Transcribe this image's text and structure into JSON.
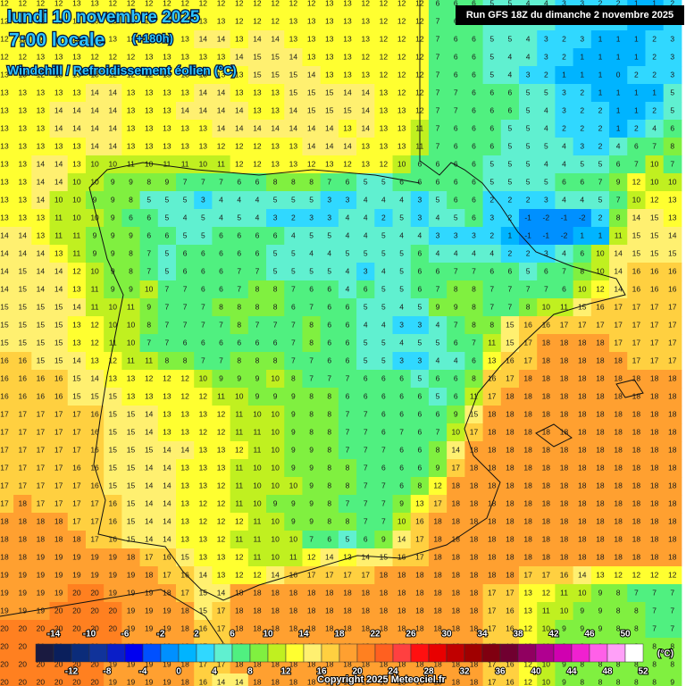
{
  "header": {
    "title": "lundi 10 novembre 2025",
    "time": "7:00 locale",
    "lead": "(+180h)",
    "variable": "Windchill / Refroidissement éolien (°C)",
    "run": "Run GFS 18Z du dimanche 2 novembre 2025"
  },
  "grid": {
    "rows": [
      [
        12,
        12,
        12,
        12,
        13,
        13,
        12,
        12,
        12,
        12,
        12,
        12,
        12,
        12,
        12,
        12,
        12,
        12,
        13,
        13,
        12,
        12,
        12,
        12,
        6,
        6,
        6,
        5,
        5,
        4,
        4,
        3,
        3,
        2,
        2,
        1,
        1,
        2
      ],
      [
        12,
        12,
        12,
        12,
        13,
        13,
        12,
        13,
        13,
        13,
        13,
        13,
        13,
        12,
        12,
        12,
        13,
        13,
        13,
        13,
        13,
        12,
        12,
        12,
        7,
        6,
        6,
        5,
        5,
        4,
        4,
        3,
        3,
        2,
        2,
        1,
        1,
        2
      ],
      [
        12,
        12,
        12,
        12,
        13,
        13,
        13,
        12,
        12,
        13,
        13,
        14,
        14,
        13,
        14,
        14,
        13,
        13,
        13,
        13,
        13,
        12,
        12,
        12,
        7,
        6,
        6,
        5,
        5,
        4,
        3,
        2,
        3,
        1,
        1,
        1,
        2,
        3
      ],
      [
        12,
        12,
        13,
        13,
        13,
        12,
        12,
        12,
        13,
        13,
        13,
        13,
        13,
        14,
        15,
        15,
        14,
        13,
        13,
        13,
        12,
        12,
        12,
        12,
        7,
        6,
        6,
        5,
        4,
        4,
        3,
        2,
        1,
        1,
        1,
        1,
        2,
        3
      ],
      [
        13,
        13,
        12,
        13,
        13,
        13,
        12,
        12,
        12,
        13,
        13,
        13,
        13,
        13,
        15,
        15,
        15,
        14,
        13,
        13,
        13,
        12,
        12,
        12,
        7,
        6,
        6,
        5,
        4,
        3,
        2,
        1,
        1,
        1,
        0,
        2,
        2,
        3
      ],
      [
        13,
        13,
        13,
        13,
        13,
        14,
        14,
        13,
        13,
        13,
        13,
        14,
        14,
        13,
        13,
        13,
        15,
        15,
        15,
        14,
        14,
        13,
        12,
        12,
        7,
        7,
        6,
        6,
        6,
        5,
        5,
        3,
        2,
        1,
        1,
        1,
        1,
        5
      ],
      [
        13,
        13,
        13,
        14,
        14,
        14,
        14,
        13,
        13,
        13,
        14,
        14,
        14,
        14,
        13,
        13,
        14,
        15,
        15,
        15,
        14,
        13,
        13,
        12,
        7,
        7,
        6,
        6,
        6,
        5,
        4,
        3,
        2,
        2,
        1,
        1,
        2,
        5
      ],
      [
        13,
        13,
        13,
        14,
        14,
        14,
        14,
        13,
        13,
        13,
        13,
        13,
        14,
        14,
        14,
        14,
        14,
        14,
        14,
        13,
        14,
        13,
        13,
        11,
        7,
        6,
        6,
        6,
        5,
        5,
        4,
        2,
        2,
        2,
        1,
        2,
        4,
        6
      ],
      [
        13,
        13,
        13,
        13,
        13,
        14,
        14,
        13,
        13,
        13,
        13,
        13,
        12,
        12,
        12,
        13,
        13,
        14,
        14,
        14,
        13,
        13,
        13,
        11,
        7,
        6,
        6,
        6,
        5,
        5,
        5,
        4,
        3,
        2,
        4,
        6,
        7,
        8
      ],
      [
        13,
        13,
        14,
        14,
        13,
        10,
        10,
        11,
        10,
        11,
        11,
        10,
        11,
        12,
        12,
        13,
        13,
        12,
        13,
        12,
        13,
        12,
        10,
        6,
        6,
        6,
        6,
        5,
        5,
        5,
        4,
        4,
        5,
        5,
        6,
        7,
        10,
        7
      ],
      [
        13,
        13,
        14,
        14,
        10,
        10,
        9,
        9,
        8,
        9,
        7,
        7,
        7,
        6,
        6,
        8,
        8,
        8,
        7,
        6,
        5,
        5,
        6,
        6,
        6,
        6,
        6,
        5,
        5,
        5,
        5,
        6,
        6,
        7,
        9,
        12,
        10,
        10
      ],
      [
        13,
        13,
        14,
        10,
        10,
        9,
        9,
        8,
        5,
        5,
        5,
        3,
        4,
        4,
        4,
        5,
        5,
        5,
        3,
        3,
        4,
        4,
        4,
        3,
        5,
        6,
        6,
        2,
        2,
        2,
        3,
        4,
        4,
        5,
        7,
        10,
        12,
        13
      ],
      [
        13,
        13,
        13,
        11,
        10,
        10,
        9,
        6,
        6,
        5,
        4,
        5,
        4,
        5,
        4,
        3,
        2,
        3,
        3,
        4,
        4,
        2,
        5,
        3,
        4,
        5,
        6,
        3,
        2,
        -1,
        -2,
        -1,
        -2,
        2,
        8,
        14,
        15,
        13
      ],
      [
        14,
        14,
        13,
        11,
        11,
        9,
        9,
        9,
        6,
        6,
        5,
        5,
        6,
        6,
        6,
        6,
        4,
        5,
        5,
        4,
        4,
        5,
        4,
        4,
        3,
        3,
        3,
        2,
        1,
        -1,
        -1,
        -2,
        1,
        1,
        11,
        15,
        15,
        14
      ],
      [
        14,
        14,
        14,
        13,
        11,
        9,
        9,
        8,
        7,
        5,
        6,
        6,
        6,
        6,
        6,
        5,
        5,
        4,
        4,
        5,
        5,
        5,
        5,
        6,
        4,
        4,
        4,
        4,
        2,
        2,
        3,
        4,
        6,
        10,
        14,
        15,
        15,
        15
      ],
      [
        14,
        15,
        14,
        14,
        12,
        10,
        9,
        8,
        7,
        5,
        6,
        6,
        6,
        7,
        7,
        5,
        5,
        5,
        5,
        4,
        3,
        4,
        5,
        6,
        6,
        7,
        7,
        6,
        6,
        5,
        6,
        7,
        8,
        10,
        14,
        16,
        16,
        16
      ],
      [
        14,
        15,
        14,
        14,
        13,
        11,
        9,
        9,
        10,
        7,
        7,
        6,
        6,
        7,
        8,
        8,
        7,
        6,
        6,
        4,
        6,
        5,
        5,
        6,
        7,
        8,
        8,
        7,
        7,
        7,
        7,
        6,
        10,
        12,
        14,
        16,
        16,
        16
      ],
      [
        15,
        15,
        15,
        15,
        14,
        11,
        10,
        11,
        9,
        7,
        7,
        7,
        8,
        8,
        8,
        8,
        6,
        7,
        6,
        6,
        5,
        5,
        4,
        5,
        9,
        9,
        8,
        7,
        7,
        8,
        10,
        11,
        15,
        16,
        17,
        17,
        17,
        17
      ],
      [
        15,
        15,
        15,
        15,
        13,
        12,
        10,
        10,
        8,
        7,
        7,
        7,
        7,
        8,
        7,
        7,
        7,
        8,
        6,
        6,
        4,
        4,
        3,
        3,
        4,
        7,
        8,
        8,
        15,
        16,
        16,
        17,
        17,
        17,
        17,
        17,
        17,
        17
      ],
      [
        15,
        15,
        15,
        15,
        13,
        12,
        11,
        10,
        7,
        7,
        6,
        6,
        6,
        6,
        6,
        6,
        7,
        8,
        6,
        6,
        5,
        5,
        4,
        5,
        5,
        6,
        7,
        11,
        15,
        17,
        18,
        18,
        18,
        18,
        17,
        17,
        17,
        17
      ],
      [
        16,
        16,
        15,
        15,
        14,
        13,
        12,
        11,
        11,
        8,
        8,
        7,
        7,
        8,
        8,
        8,
        7,
        7,
        6,
        6,
        5,
        5,
        3,
        3,
        4,
        4,
        6,
        13,
        16,
        17,
        18,
        18,
        18,
        18,
        18,
        17,
        17,
        17
      ],
      [
        16,
        16,
        16,
        16,
        15,
        14,
        13,
        13,
        12,
        12,
        12,
        10,
        9,
        9,
        9,
        10,
        8,
        7,
        7,
        7,
        6,
        6,
        6,
        5,
        6,
        6,
        8,
        16,
        17,
        18,
        18,
        18,
        18,
        18,
        18,
        18,
        18,
        18
      ],
      [
        16,
        16,
        16,
        16,
        15,
        15,
        15,
        13,
        13,
        13,
        12,
        12,
        11,
        10,
        9,
        9,
        9,
        8,
        8,
        6,
        6,
        6,
        6,
        6,
        5,
        6,
        11,
        17,
        18,
        18,
        18,
        18,
        18,
        18,
        18,
        18,
        18,
        18
      ],
      [
        17,
        17,
        17,
        17,
        17,
        16,
        15,
        15,
        14,
        13,
        13,
        13,
        12,
        11,
        10,
        10,
        9,
        8,
        8,
        7,
        7,
        6,
        6,
        6,
        6,
        9,
        15,
        18,
        18,
        18,
        18,
        18,
        18,
        18,
        18,
        18,
        18,
        18
      ],
      [
        17,
        17,
        17,
        17,
        17,
        16,
        15,
        15,
        14,
        13,
        13,
        12,
        12,
        11,
        11,
        10,
        9,
        8,
        8,
        7,
        7,
        6,
        7,
        6,
        7,
        10,
        17,
        18,
        18,
        18,
        18,
        18,
        18,
        18,
        18,
        18,
        18,
        18
      ],
      [
        17,
        17,
        17,
        17,
        17,
        16,
        15,
        15,
        15,
        14,
        14,
        13,
        13,
        12,
        11,
        10,
        9,
        9,
        8,
        7,
        7,
        7,
        6,
        6,
        8,
        14,
        18,
        18,
        18,
        18,
        18,
        18,
        18,
        18,
        18,
        18,
        18,
        18
      ],
      [
        17,
        17,
        17,
        17,
        16,
        16,
        15,
        15,
        14,
        14,
        13,
        13,
        13,
        11,
        10,
        10,
        9,
        9,
        8,
        8,
        7,
        6,
        6,
        6,
        9,
        17,
        18,
        18,
        18,
        18,
        18,
        18,
        18,
        18,
        18,
        18,
        18,
        18
      ],
      [
        17,
        17,
        17,
        17,
        17,
        16,
        15,
        15,
        14,
        14,
        13,
        13,
        12,
        11,
        10,
        10,
        10,
        9,
        8,
        8,
        7,
        7,
        6,
        8,
        12,
        18,
        18,
        18,
        18,
        18,
        18,
        18,
        18,
        18,
        18,
        18,
        18,
        18
      ],
      [
        17,
        18,
        17,
        17,
        17,
        17,
        16,
        15,
        14,
        14,
        13,
        12,
        12,
        11,
        10,
        9,
        9,
        9,
        8,
        7,
        7,
        7,
        9,
        13,
        17,
        18,
        18,
        18,
        18,
        18,
        18,
        18,
        18,
        18,
        18,
        18,
        18,
        18
      ],
      [
        18,
        18,
        18,
        18,
        17,
        17,
        16,
        15,
        14,
        14,
        13,
        12,
        12,
        12,
        11,
        10,
        9,
        9,
        8,
        8,
        7,
        7,
        10,
        16,
        18,
        18,
        18,
        18,
        18,
        18,
        18,
        18,
        18,
        18,
        18,
        18,
        18,
        18
      ],
      [
        18,
        18,
        18,
        18,
        18,
        17,
        16,
        15,
        14,
        14,
        13,
        13,
        12,
        11,
        11,
        10,
        10,
        7,
        6,
        5,
        6,
        9,
        14,
        17,
        18,
        18,
        18,
        18,
        18,
        18,
        18,
        18,
        18,
        18,
        18,
        18,
        18,
        18
      ],
      [
        18,
        18,
        19,
        19,
        19,
        19,
        19,
        18,
        17,
        16,
        15,
        13,
        13,
        12,
        11,
        10,
        11,
        12,
        14,
        13,
        14,
        15,
        16,
        17,
        18,
        18,
        18,
        18,
        18,
        18,
        18,
        18,
        18,
        18,
        18,
        18,
        18,
        18
      ],
      [
        19,
        19,
        19,
        19,
        19,
        19,
        19,
        19,
        18,
        17,
        16,
        14,
        13,
        12,
        12,
        14,
        16,
        17,
        17,
        17,
        17,
        18,
        18,
        18,
        18,
        18,
        18,
        18,
        18,
        17,
        17,
        16,
        14,
        13,
        12,
        12,
        12,
        12
      ],
      [
        19,
        19,
        19,
        19,
        20,
        20,
        19,
        19,
        19,
        18,
        17,
        15,
        14,
        18,
        18,
        18,
        18,
        18,
        18,
        18,
        18,
        18,
        18,
        18,
        18,
        18,
        18,
        17,
        17,
        13,
        12,
        11,
        10,
        9,
        8,
        7,
        7,
        7
      ],
      [
        19,
        19,
        19,
        20,
        20,
        20,
        20,
        19,
        19,
        19,
        18,
        15,
        17,
        18,
        18,
        18,
        18,
        18,
        18,
        18,
        18,
        18,
        18,
        18,
        18,
        18,
        18,
        17,
        16,
        13,
        11,
        10,
        9,
        9,
        8,
        8,
        7,
        7
      ],
      [
        20,
        20,
        20,
        20,
        20,
        20,
        20,
        19,
        19,
        19,
        18,
        16,
        17,
        18,
        18,
        18,
        18,
        18,
        18,
        18,
        18,
        18,
        18,
        18,
        18,
        18,
        18,
        17,
        16,
        12,
        10,
        9,
        9,
        9,
        8,
        8,
        7,
        7
      ],
      [
        20,
        20,
        20,
        20,
        20,
        20,
        20,
        19,
        19,
        19,
        18,
        17,
        17,
        18,
        18,
        18,
        18,
        18,
        18,
        18,
        18,
        18,
        18,
        18,
        18,
        18,
        18,
        17,
        16,
        12,
        10,
        9,
        8,
        8,
        8,
        8,
        8,
        8
      ],
      [
        20,
        20,
        20,
        20,
        20,
        20,
        19,
        19,
        19,
        19,
        18,
        17,
        17,
        18,
        18,
        18,
        18,
        18,
        18,
        18,
        18,
        18,
        18,
        18,
        18,
        18,
        18,
        17,
        16,
        12,
        10,
        9,
        8,
        8,
        8,
        8,
        8,
        8
      ],
      [
        20,
        20,
        20,
        20,
        20,
        20,
        19,
        19,
        19,
        19,
        18,
        16,
        14,
        14,
        18,
        18,
        18,
        18,
        18,
        18,
        18,
        18,
        18,
        18,
        18,
        18,
        18,
        17,
        16,
        12,
        10,
        9,
        8,
        8,
        8,
        8,
        8,
        9
      ]
    ]
  },
  "legend": {
    "ticks": [
      -14,
      -12,
      -10,
      -8,
      -6,
      -4,
      -2,
      0,
      2,
      4,
      6,
      8,
      10,
      12,
      14,
      16,
      18,
      20,
      22,
      24,
      26,
      28,
      30,
      32,
      34,
      36,
      38,
      40,
      42,
      44,
      46,
      48,
      50,
      52
    ],
    "colors": [
      "#1a1a40",
      "#0a1f5c",
      "#0b2c7a",
      "#10339a",
      "#0a1ec8",
      "#0000f0",
      "#0050ff",
      "#0090ff",
      "#00b4ff",
      "#30d8ff",
      "#60f0d0",
      "#50f080",
      "#80f040",
      "#c0f020",
      "#ffff30",
      "#fff070",
      "#ffd040",
      "#ffa030",
      "#ff8020",
      "#ff6020",
      "#ff4040",
      "#ff1010",
      "#e80000",
      "#c00000",
      "#a00000",
      "#800010",
      "#700030",
      "#900060",
      "#b00090",
      "#d000b0",
      "#f020d0",
      "#ff60e8",
      "#ffa0f8",
      "#ffffff"
    ],
    "unit": "(°C)"
  },
  "copyright": "Copyright 2025 Meteociel.fr"
}
